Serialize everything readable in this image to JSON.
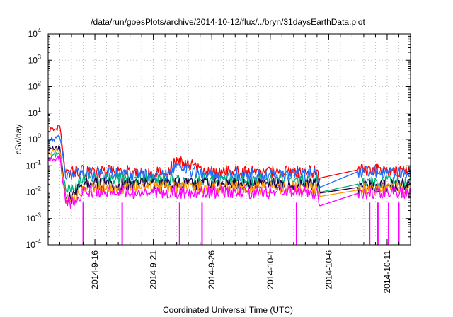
{
  "chart_data": {
    "type": "line",
    "title": "/data/run/goesPlots/archive/2014-10-12/flux/../bryn/31daysEarthData.plot",
    "xlabel": "Coordinated Universal Time (UTC)",
    "ylabel": "cSv/day",
    "y_scale": "log",
    "ylim": [
      0.0001,
      10000
    ],
    "xlim": [
      "2014-09-12",
      "2014-10-13"
    ],
    "grid": true,
    "legend": "none",
    "x_ticks": [
      "2014-9-16",
      "2014-9-21",
      "2014-9-26",
      "2014-10-1",
      "2014-10-6",
      "2014-10-11"
    ],
    "y_ticks": [
      {
        "value": 0.0001,
        "base": "10",
        "exp": "-4"
      },
      {
        "value": 0.001,
        "base": "10",
        "exp": "-3"
      },
      {
        "value": 0.01,
        "base": "10",
        "exp": "-2"
      },
      {
        "value": 0.1,
        "base": "10",
        "exp": "-1"
      },
      {
        "value": 1,
        "base": "10",
        "exp": "0"
      },
      {
        "value": 10,
        "base": "10",
        "exp": "1"
      },
      {
        "value": 100,
        "base": "10",
        "exp": "2"
      },
      {
        "value": 1000,
        "base": "10",
        "exp": "3"
      },
      {
        "value": 10000,
        "base": "10",
        "exp": "4"
      }
    ],
    "series": [
      {
        "color": "#ff0000",
        "x": [
          "2014-09-12",
          "2014-09-13",
          "2014-09-13T12",
          "2014-09-14",
          "2014-09-15",
          "2014-09-19",
          "2014-09-22",
          "2014-09-23",
          "2014-09-26",
          "2014-10-01",
          "2014-10-05",
          "2014-10-05T06",
          "2014-10-08T12",
          "2014-10-13"
        ],
        "y": [
          2.0,
          3.0,
          0.05,
          0.06,
          0.06,
          0.06,
          0.05,
          0.15,
          0.06,
          0.06,
          0.06,
          0.022,
          0.07,
          0.06
        ]
      },
      {
        "color": "#1f6fff",
        "x": [
          "2014-09-12",
          "2014-09-13",
          "2014-09-13T12",
          "2014-09-14",
          "2014-09-15",
          "2014-09-19",
          "2014-09-22",
          "2014-09-23",
          "2014-09-26",
          "2014-10-01",
          "2014-10-05",
          "2014-10-05T06",
          "2014-10-08T12",
          "2014-10-13"
        ],
        "y": [
          0.9,
          1.2,
          0.04,
          0.05,
          0.05,
          0.045,
          0.04,
          0.08,
          0.045,
          0.045,
          0.045,
          0.018,
          0.06,
          0.05
        ]
      },
      {
        "color": "#00b27a",
        "x": [
          "2014-09-12",
          "2014-09-13",
          "2014-09-13T12",
          "2014-09-14",
          "2014-09-15",
          "2014-09-19",
          "2014-09-22",
          "2014-09-26",
          "2014-10-01",
          "2014-10-05",
          "2014-10-05T06",
          "2014-10-08T12",
          "2014-10-13"
        ],
        "y": [
          0.2,
          0.3,
          0.012,
          0.011,
          0.03,
          0.03,
          0.028,
          0.03,
          0.028,
          0.028,
          0.009,
          0.02,
          0.028
        ]
      },
      {
        "color": "#22004a",
        "x": [
          "2014-09-12",
          "2014-09-13",
          "2014-09-13T12",
          "2014-09-14",
          "2014-09-15",
          "2014-09-19",
          "2014-09-26",
          "2014-10-01",
          "2014-10-05",
          "2014-10-05T06",
          "2014-10-08T12",
          "2014-10-13"
        ],
        "y": [
          0.4,
          0.5,
          0.006,
          0.006,
          0.02,
          0.02,
          0.02,
          0.02,
          0.02,
          0.007,
          0.015,
          0.02
        ]
      },
      {
        "color": "#ff9900",
        "x": [
          "2014-09-12",
          "2014-09-13",
          "2014-09-13T12",
          "2014-09-14",
          "2014-09-15",
          "2014-09-19",
          "2014-09-26",
          "2014-10-01",
          "2014-10-05",
          "2014-10-05T06",
          "2014-10-08T12",
          "2014-10-13"
        ],
        "y": [
          0.3,
          0.4,
          0.005,
          0.005,
          0.015,
          0.015,
          0.015,
          0.015,
          0.015,
          0.005,
          0.012,
          0.015
        ]
      },
      {
        "color": "#ff00ff",
        "x": [
          "2014-09-12",
          "2014-09-13",
          "2014-09-13T12",
          "2014-09-14",
          "2014-09-15",
          "2014-09-19",
          "2014-09-26",
          "2014-10-01",
          "2014-10-05",
          "2014-10-05T06",
          "2014-10-08T12",
          "2014-10-13"
        ],
        "y": [
          0.15,
          0.2,
          0.004,
          0.004,
          0.01,
          0.01,
          0.01,
          0.01,
          0.01,
          0.004,
          0.009,
          0.01
        ]
      }
    ],
    "dropouts": [
      {
        "date": "2014-09-15",
        "value": 0.0001
      },
      {
        "date": "2014-09-18T08",
        "value": 0.0001
      },
      {
        "date": "2014-09-23T06",
        "value": 0.0001
      },
      {
        "date": "2014-09-25T04",
        "value": 0.0001
      },
      {
        "date": "2014-10-03T06",
        "value": 0.0001
      },
      {
        "date": "2014-10-09T12",
        "value": 0.0001
      },
      {
        "date": "2014-10-10T05",
        "value": 0.0001
      },
      {
        "date": "2014-10-11T03",
        "value": 0.0001
      },
      {
        "date": "2014-10-12T00",
        "value": 0.0001
      }
    ]
  }
}
